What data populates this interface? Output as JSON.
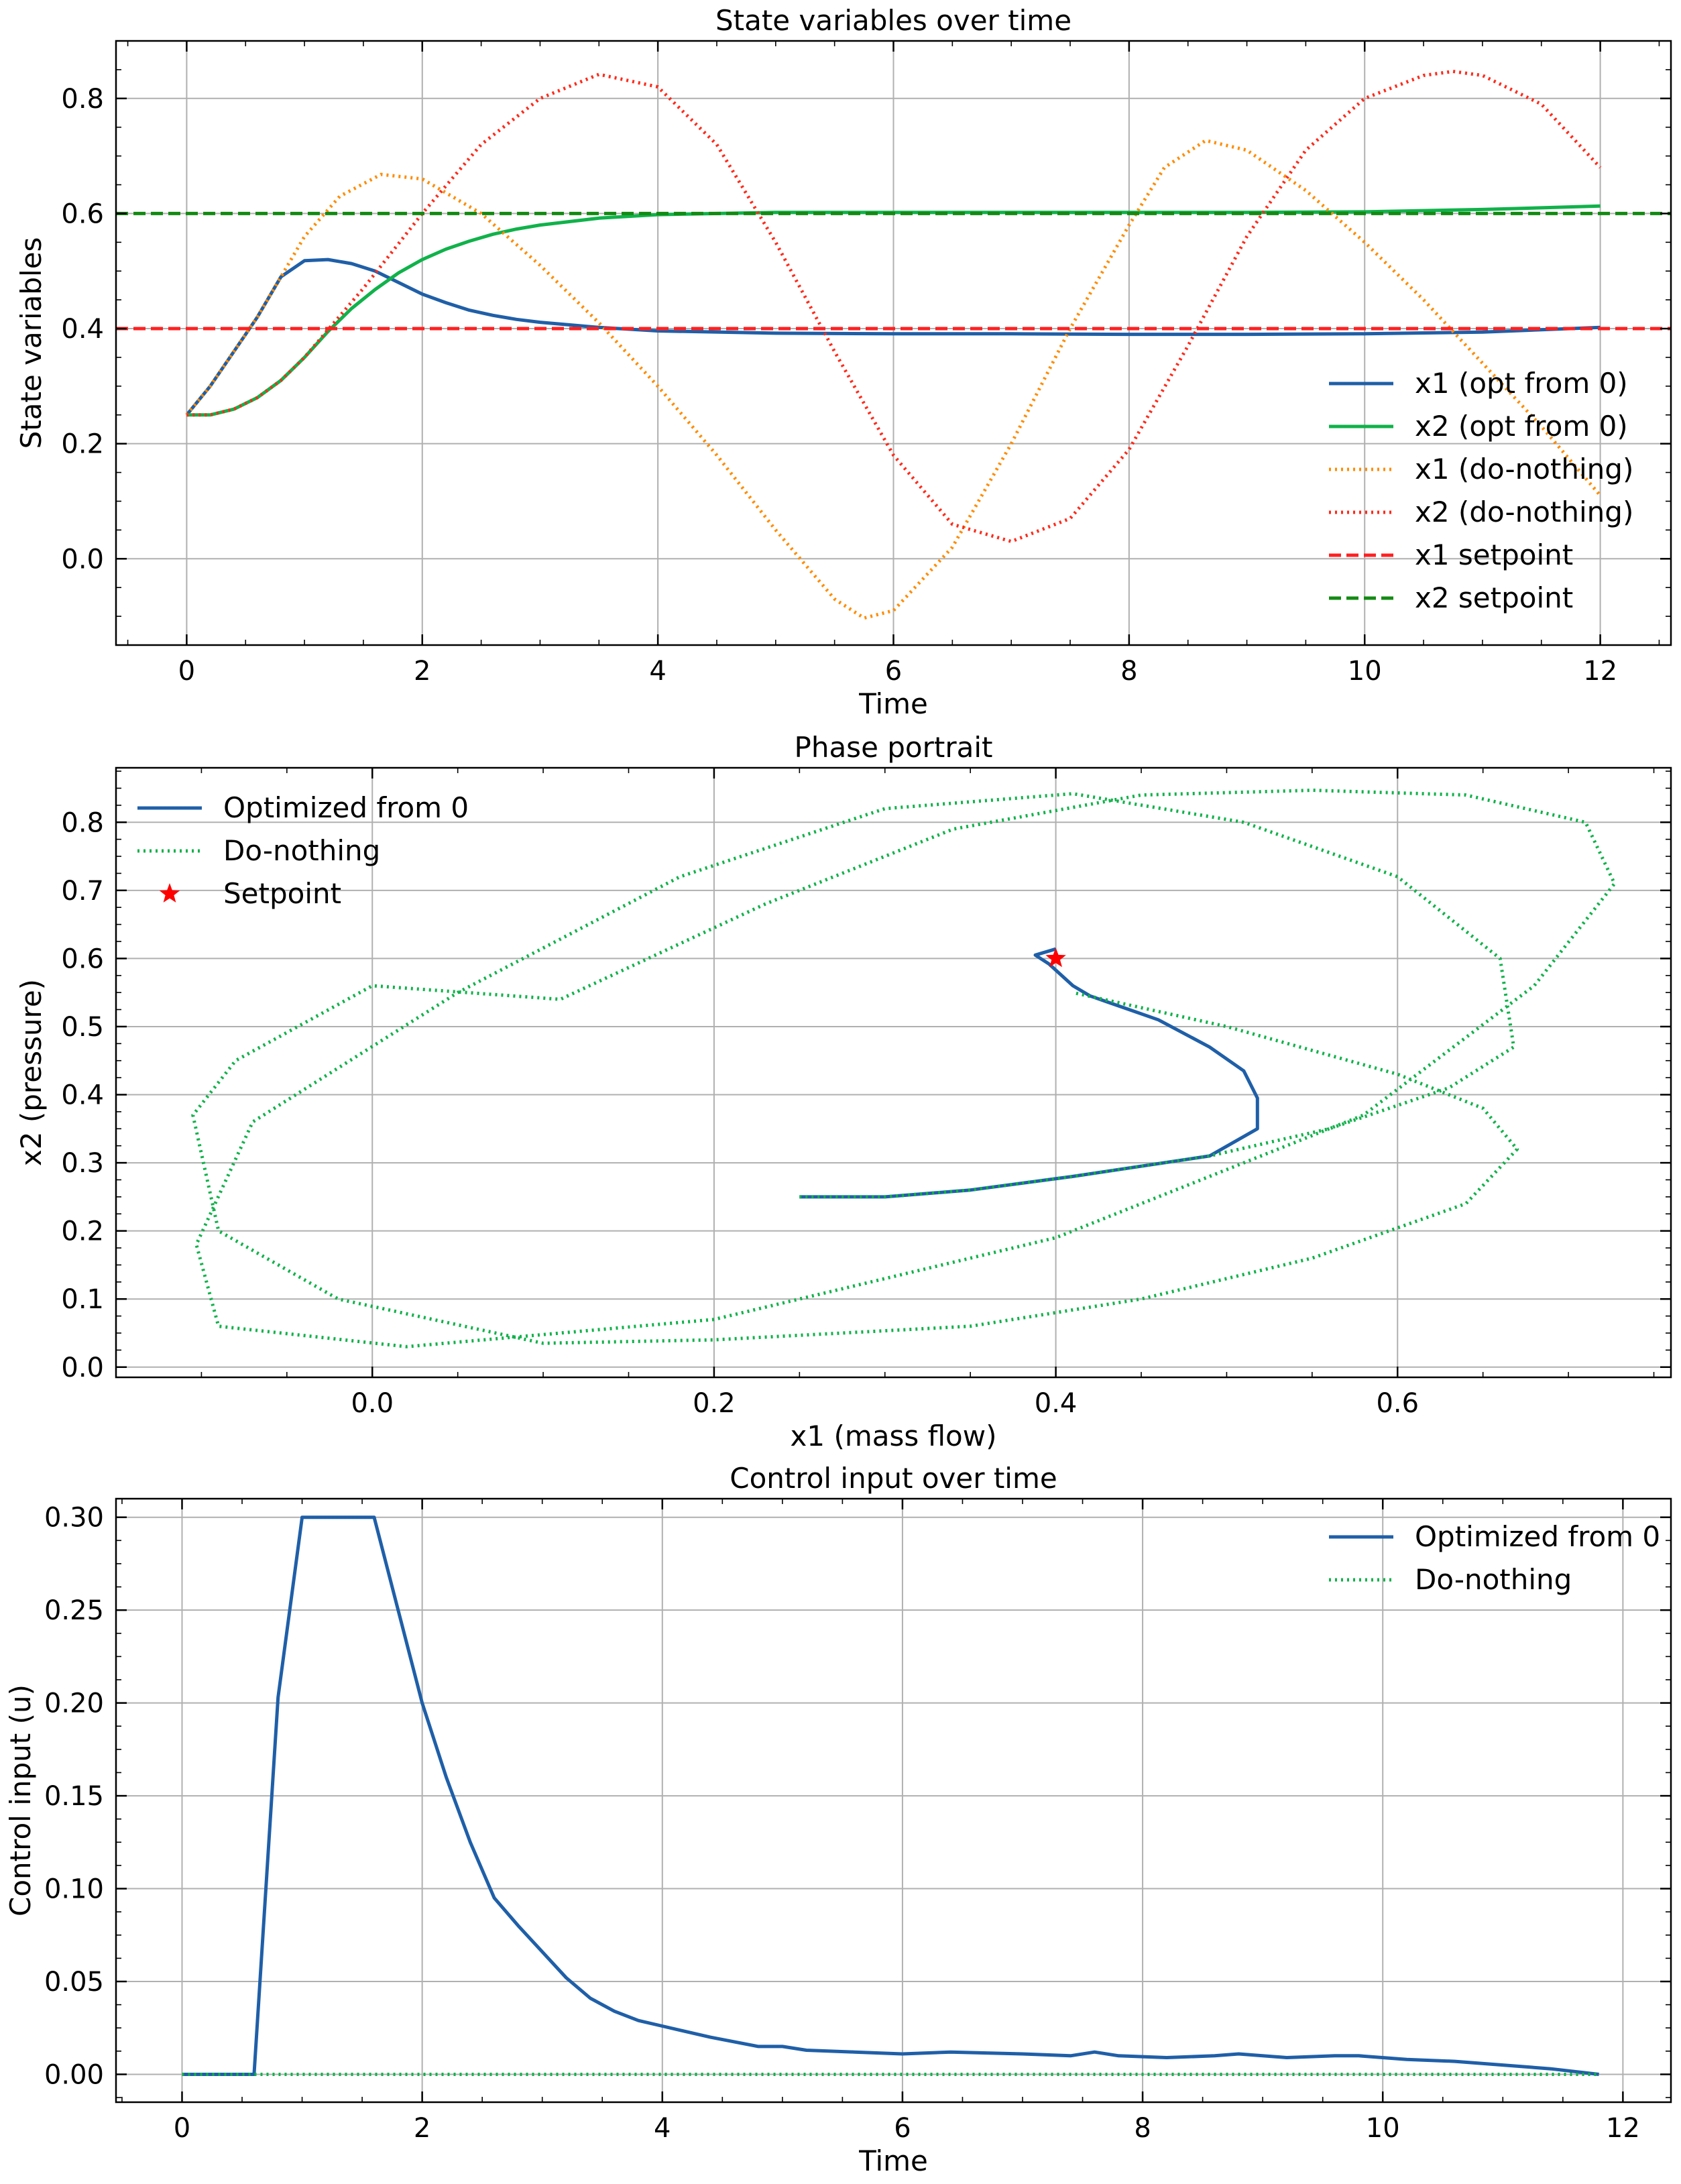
{
  "chart_data": [
    {
      "type": "line",
      "title": "State variables over time",
      "xlabel": "Time",
      "ylabel": "State variables",
      "xlim": [
        -0.6,
        12.6
      ],
      "ylim": [
        -0.15,
        0.9
      ],
      "xticks": [
        0,
        2,
        4,
        6,
        8,
        10,
        12
      ],
      "yticks": [
        0.0,
        0.2,
        0.4,
        0.6,
        0.8
      ],
      "grid": true,
      "legend_position": "lower-right",
      "series": [
        {
          "name": "x1 (opt from 0)",
          "color": "#1f5fa8",
          "style": "solid",
          "x": [
            0,
            0.2,
            0.4,
            0.6,
            0.8,
            1.0,
            1.2,
            1.4,
            1.6,
            1.8,
            2.0,
            2.2,
            2.4,
            2.6,
            2.8,
            3.0,
            3.5,
            4.0,
            5.0,
            6.0,
            7.0,
            8.0,
            9.0,
            10.0,
            11.0,
            12.0
          ],
          "y": [
            0.25,
            0.3,
            0.36,
            0.42,
            0.49,
            0.518,
            0.52,
            0.513,
            0.5,
            0.48,
            0.46,
            0.445,
            0.432,
            0.423,
            0.416,
            0.411,
            0.402,
            0.396,
            0.392,
            0.391,
            0.391,
            0.39,
            0.39,
            0.391,
            0.394,
            0.402
          ]
        },
        {
          "name": "x2 (opt from 0)",
          "color": "#10b24a",
          "style": "solid",
          "x": [
            0,
            0.2,
            0.4,
            0.6,
            0.8,
            1.0,
            1.2,
            1.4,
            1.6,
            1.8,
            2.0,
            2.2,
            2.4,
            2.6,
            2.8,
            3.0,
            3.5,
            4.0,
            5.0,
            6.0,
            7.0,
            8.0,
            9.0,
            10.0,
            11.0,
            12.0
          ],
          "y": [
            0.25,
            0.25,
            0.26,
            0.28,
            0.31,
            0.35,
            0.395,
            0.435,
            0.468,
            0.497,
            0.52,
            0.538,
            0.552,
            0.564,
            0.573,
            0.58,
            0.592,
            0.598,
            0.602,
            0.602,
            0.602,
            0.602,
            0.602,
            0.603,
            0.607,
            0.613
          ]
        },
        {
          "name": "x1 (do-nothing)",
          "color": "#ff8c00",
          "style": "dotted",
          "x": [
            0,
            0.2,
            0.4,
            0.6,
            0.8,
            1.0,
            1.3,
            1.65,
            2.0,
            2.5,
            3.0,
            3.5,
            4.0,
            4.5,
            5.0,
            5.5,
            5.75,
            6.0,
            6.5,
            7.0,
            7.5,
            8.0,
            8.3,
            8.65,
            9.0,
            9.5,
            10.0,
            10.5,
            11.0,
            11.5,
            12.0
          ],
          "y": [
            0.25,
            0.3,
            0.36,
            0.42,
            0.49,
            0.56,
            0.63,
            0.668,
            0.66,
            0.6,
            0.51,
            0.41,
            0.3,
            0.18,
            0.05,
            -0.07,
            -0.103,
            -0.09,
            0.02,
            0.2,
            0.4,
            0.58,
            0.68,
            0.727,
            0.71,
            0.64,
            0.55,
            0.45,
            0.34,
            0.23,
            0.11
          ]
        },
        {
          "name": "x2 (do-nothing)",
          "color": "#ff2a1a",
          "style": "dotted",
          "x": [
            0,
            0.2,
            0.4,
            0.6,
            0.8,
            1.0,
            1.5,
            2.0,
            2.5,
            3.0,
            3.5,
            4.0,
            4.5,
            5.0,
            5.5,
            6.0,
            6.5,
            7.0,
            7.5,
            8.0,
            8.5,
            9.0,
            9.5,
            10.0,
            10.5,
            10.75,
            11.0,
            11.5,
            12.0
          ],
          "y": [
            0.25,
            0.25,
            0.26,
            0.28,
            0.31,
            0.35,
            0.47,
            0.6,
            0.72,
            0.8,
            0.842,
            0.82,
            0.72,
            0.55,
            0.36,
            0.18,
            0.06,
            0.03,
            0.07,
            0.19,
            0.37,
            0.56,
            0.71,
            0.8,
            0.84,
            0.847,
            0.84,
            0.79,
            0.68
          ]
        },
        {
          "name": "x1 setpoint",
          "color": "#ff2020",
          "style": "dashed",
          "x": [
            -0.6,
            12.6
          ],
          "y": [
            0.4,
            0.4
          ]
        },
        {
          "name": "x2 setpoint",
          "color": "#138a13",
          "style": "dashed",
          "x": [
            -0.6,
            12.6
          ],
          "y": [
            0.6,
            0.6
          ]
        }
      ]
    },
    {
      "type": "line",
      "title": "Phase portrait",
      "xlabel": "x1 (mass flow)",
      "ylabel": "x2 (pressure)",
      "xlim": [
        -0.15,
        0.76
      ],
      "ylim": [
        -0.015,
        0.88
      ],
      "xticks": [
        0.0,
        0.2,
        0.4,
        0.6
      ],
      "yticks": [
        0.0,
        0.1,
        0.2,
        0.3,
        0.4,
        0.5,
        0.6,
        0.7,
        0.8
      ],
      "grid": true,
      "legend_position": "top-left",
      "series": [
        {
          "name": "Optimized from 0",
          "color": "#1f5fa8",
          "style": "solid",
          "x": [
            0.25,
            0.3,
            0.35,
            0.41,
            0.49,
            0.518,
            0.518,
            0.51,
            0.49,
            0.46,
            0.42,
            0.41,
            0.396,
            0.388,
            0.4
          ],
          "y": [
            0.25,
            0.25,
            0.26,
            0.28,
            0.31,
            0.35,
            0.395,
            0.435,
            0.47,
            0.51,
            0.545,
            0.56,
            0.592,
            0.605,
            0.614
          ]
        },
        {
          "name": "Do-nothing",
          "color": "#10b24a",
          "style": "dotted",
          "x": [
            0.25,
            0.3,
            0.35,
            0.41,
            0.49,
            0.56,
            0.63,
            0.668,
            0.66,
            0.6,
            0.51,
            0.41,
            0.3,
            0.18,
            0.05,
            -0.07,
            -0.103,
            -0.09,
            0.02,
            0.2,
            0.4,
            0.58,
            0.68,
            0.727,
            0.71,
            0.64,
            0.55,
            0.45,
            0.34,
            0.23,
            0.11,
            0.0,
            -0.08,
            -0.105,
            -0.09,
            -0.02,
            0.1,
            0.2,
            0.35,
            0.45,
            0.55,
            0.64,
            0.67,
            0.65,
            0.6,
            0.5,
            0.41
          ],
          "y": [
            0.25,
            0.25,
            0.26,
            0.28,
            0.31,
            0.35,
            0.41,
            0.47,
            0.6,
            0.72,
            0.8,
            0.842,
            0.82,
            0.72,
            0.55,
            0.36,
            0.18,
            0.06,
            0.03,
            0.07,
            0.19,
            0.37,
            0.56,
            0.71,
            0.8,
            0.84,
            0.847,
            0.84,
            0.79,
            0.68,
            0.54,
            0.56,
            0.45,
            0.37,
            0.2,
            0.1,
            0.035,
            0.04,
            0.06,
            0.1,
            0.16,
            0.24,
            0.32,
            0.38,
            0.43,
            0.5,
            0.55
          ]
        },
        {
          "name": "Setpoint",
          "color": "#ff0000",
          "style": "marker-star",
          "x": [
            0.4
          ],
          "y": [
            0.6
          ]
        }
      ]
    },
    {
      "type": "line",
      "title": "Control input over time",
      "xlabel": "Time",
      "ylabel": "Control input (u)",
      "xlim": [
        -0.55,
        12.4
      ],
      "ylim": [
        -0.015,
        0.31
      ],
      "xticks": [
        0,
        2,
        4,
        6,
        8,
        10,
        12
      ],
      "yticks": [
        0.0,
        0.05,
        0.1,
        0.15,
        0.2,
        0.25,
        0.3
      ],
      "grid": true,
      "legend_position": "top-right",
      "series": [
        {
          "name": "Optimized from 0",
          "color": "#1f5fa8",
          "style": "solid",
          "x": [
            0,
            0.2,
            0.4,
            0.6,
            0.8,
            1.0,
            1.2,
            1.4,
            1.6,
            1.8,
            2.0,
            2.2,
            2.4,
            2.6,
            2.8,
            3.0,
            3.2,
            3.4,
            3.6,
            3.8,
            4.0,
            4.4,
            4.8,
            5.0,
            5.2,
            5.6,
            6.0,
            6.4,
            7.0,
            7.4,
            7.6,
            7.8,
            8.2,
            8.6,
            8.8,
            9.2,
            9.6,
            9.8,
            10.2,
            10.6,
            11.0,
            11.4,
            11.8
          ],
          "y": [
            0,
            0,
            0,
            0,
            0.203,
            0.3,
            0.3,
            0.3,
            0.3,
            0.25,
            0.2,
            0.16,
            0.125,
            0.095,
            0.08,
            0.066,
            0.052,
            0.041,
            0.034,
            0.029,
            0.026,
            0.02,
            0.015,
            0.015,
            0.013,
            0.012,
            0.011,
            0.012,
            0.011,
            0.01,
            0.012,
            0.01,
            0.009,
            0.01,
            0.011,
            0.009,
            0.01,
            0.01,
            0.008,
            0.007,
            0.005,
            0.003,
            0.0
          ]
        },
        {
          "name": "Do-nothing",
          "color": "#10b24a",
          "style": "dotted",
          "x": [
            0,
            11.8
          ],
          "y": [
            0,
            0
          ]
        }
      ]
    }
  ]
}
